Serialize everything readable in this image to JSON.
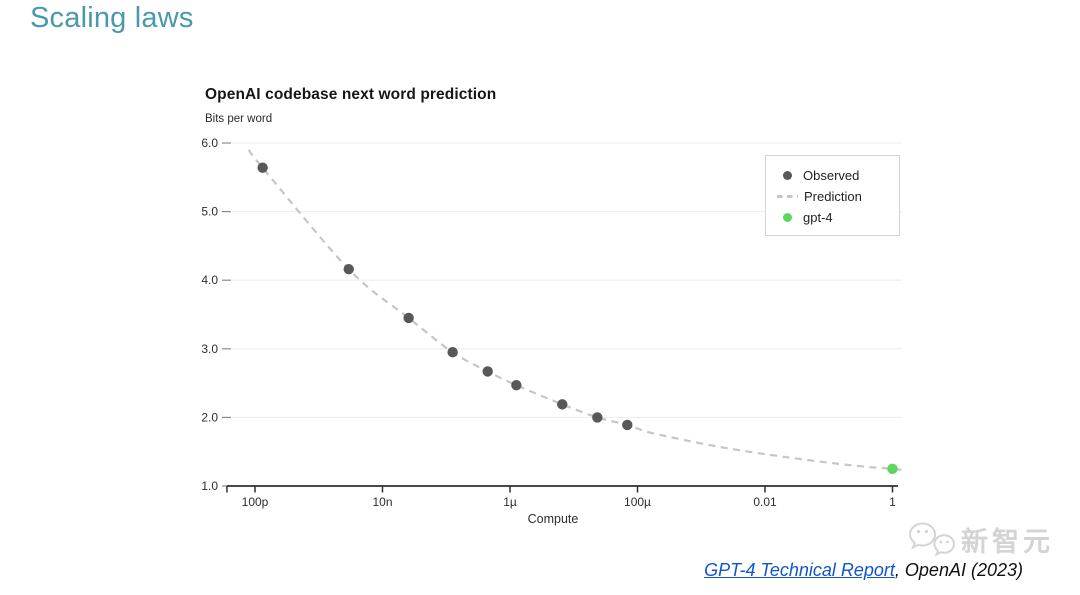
{
  "page": {
    "title": "Scaling laws",
    "title_color": "#4a98ab",
    "background_color": "#ffffff"
  },
  "chart_data": {
    "type": "scatter",
    "title": "OpenAI codebase next word prediction",
    "y_axis_label": "Bits per word",
    "xlabel": "Compute",
    "x_scale": "log10 of fraction of GPT-4 compute",
    "ylim": [
      1.0,
      6.0
    ],
    "xlim_log": [
      -10.44,
      0.19
    ],
    "y_ticks": [
      6.0,
      5.0,
      4.0,
      3.0,
      2.0,
      1.0
    ],
    "x_ticks": [
      {
        "log": -10.44,
        "label": ""
      },
      {
        "log": -10,
        "label": "100p"
      },
      {
        "log": -8,
        "label": "10n"
      },
      {
        "log": -6,
        "label": "1µ"
      },
      {
        "log": -4,
        "label": "100µ"
      },
      {
        "log": -2,
        "label": "0.01"
      },
      {
        "log": 0,
        "label": "1"
      }
    ],
    "grid": "horizontal gridlines only",
    "legend_position": "upper right",
    "series": [
      {
        "name": "Observed",
        "marker": "dot",
        "color": "#58585a",
        "points_log_bits": [
          [
            -9.88,
            5.64
          ],
          [
            -8.53,
            4.16
          ],
          [
            -7.59,
            3.45
          ],
          [
            -6.9,
            2.95
          ],
          [
            -6.35,
            2.67
          ],
          [
            -5.9,
            2.47
          ],
          [
            -5.18,
            2.19
          ],
          [
            -4.63,
            2.0
          ],
          [
            -4.16,
            1.89
          ]
        ]
      },
      {
        "name": "Prediction",
        "marker": "dash",
        "style": "dashed",
        "color": "#c6c6c6",
        "points_log_bits": [
          [
            -10.1,
            5.9
          ],
          [
            -9.88,
            5.64
          ],
          [
            -8.53,
            4.16
          ],
          [
            -7.59,
            3.45
          ],
          [
            -6.9,
            2.95
          ],
          [
            -6.35,
            2.67
          ],
          [
            -5.9,
            2.47
          ],
          [
            -5.18,
            2.19
          ],
          [
            -4.63,
            2.0
          ],
          [
            -4.16,
            1.89
          ],
          [
            -3.76,
            1.77
          ],
          [
            -2.71,
            1.57
          ],
          [
            -1.66,
            1.42
          ],
          [
            -0.63,
            1.3
          ],
          [
            0.0,
            1.25
          ],
          [
            0.19,
            1.23
          ]
        ]
      },
      {
        "name": "gpt-4",
        "marker": "dot",
        "color": "#5cd65c",
        "points_log_bits": [
          [
            0.0,
            1.25
          ]
        ]
      }
    ]
  },
  "citation": {
    "link_text": "GPT-4 Technical Report",
    "suffix": ", OpenAI (2023)",
    "link_color": "#1155cc"
  },
  "watermark": {
    "icon": "wechat-bubbles-icon",
    "text": "新智元",
    "color": "#d4d4d4"
  }
}
